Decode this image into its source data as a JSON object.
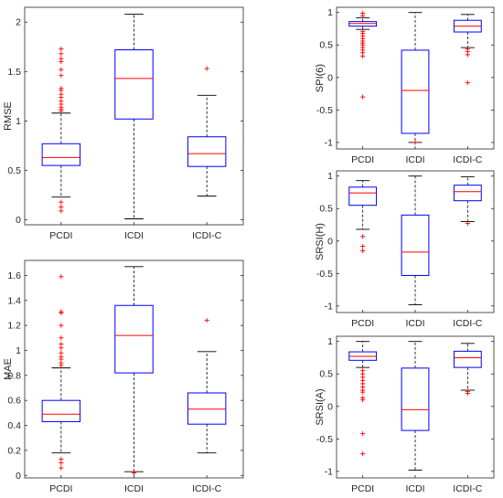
{
  "chart_data": [
    {
      "type": "box",
      "ylabel": "RMSE",
      "ylim": [
        -0.05,
        2.15
      ],
      "yticks": [
        0,
        0.5,
        1,
        1.5,
        2
      ],
      "ytick_labels": [
        "0",
        "0.5",
        "1",
        "1.5",
        "2"
      ],
      "categories": [
        "PCDI",
        "ICDI",
        "ICDI-C"
      ],
      "boxes": [
        {
          "whisker_low": 0.23,
          "q1": 0.55,
          "median": 0.63,
          "q3": 0.77,
          "whisker_high": 1.08,
          "outliers": [
            0.09,
            0.13,
            0.18,
            1.1,
            1.12,
            1.14,
            1.17,
            1.2,
            1.24,
            1.27,
            1.31,
            1.33,
            1.46,
            1.52,
            1.6,
            1.63,
            1.68,
            1.73
          ]
        },
        {
          "whisker_low": 0.01,
          "q1": 1.02,
          "median": 1.43,
          "q3": 1.72,
          "whisker_high": 2.08,
          "outliers": []
        },
        {
          "whisker_low": 0.24,
          "q1": 0.54,
          "median": 0.67,
          "q3": 0.84,
          "whisker_high": 1.26,
          "outliers": [
            1.53
          ]
        }
      ]
    },
    {
      "type": "box",
      "ylabel": "MAE",
      "ylim": [
        -0.02,
        1.72
      ],
      "yticks": [
        0,
        0.2,
        0.4,
        0.6,
        0.8,
        1,
        1.2,
        1.4,
        1.6
      ],
      "ytick_labels": [
        "0",
        "0.2",
        "0.4",
        "0.6",
        "0.8",
        "1",
        "1.2",
        "1.4",
        "1.6"
      ],
      "categories": [
        "PCDI",
        "ICDI",
        "ICDI-C"
      ],
      "boxes": [
        {
          "whisker_low": 0.18,
          "q1": 0.43,
          "median": 0.49,
          "q3": 0.6,
          "whisker_high": 0.86,
          "outliers": [
            0.06,
            0.1,
            0.13,
            0.88,
            0.9,
            0.93,
            0.95,
            0.98,
            1.02,
            1.05,
            1.1,
            1.2,
            1.3,
            1.31,
            1.59
          ]
        },
        {
          "whisker_low": 0.03,
          "q1": 0.82,
          "median": 1.12,
          "q3": 1.36,
          "whisker_high": 1.67,
          "outliers": [
            0.02
          ]
        },
        {
          "whisker_low": 0.18,
          "q1": 0.41,
          "median": 0.53,
          "q3": 0.66,
          "whisker_high": 0.99,
          "outliers": [
            1.24
          ]
        }
      ]
    },
    {
      "type": "box",
      "ylabel": "SPI(6)",
      "ylim": [
        -1.1,
        1.08
      ],
      "yticks": [
        -1,
        -0.5,
        0,
        0.5,
        1
      ],
      "ytick_labels": [
        "-1",
        "-0.5",
        "0",
        "0.5",
        "1"
      ],
      "categories": [
        "PCDI",
        "ICDI",
        "ICDI-C"
      ],
      "boxes": [
        {
          "whisker_low": 0.74,
          "q1": 0.79,
          "median": 0.83,
          "q3": 0.86,
          "whisker_high": 0.92,
          "outliers": [
            -0.3,
            0.33,
            0.38,
            0.42,
            0.46,
            0.5,
            0.53,
            0.56,
            0.6,
            0.64,
            0.68,
            0.71,
            0.95,
            0.99
          ]
        },
        {
          "whisker_low": -1.0,
          "q1": -0.86,
          "median": -0.2,
          "q3": 0.42,
          "whisker_high": 1.0,
          "outliers": [
            -1.0
          ]
        },
        {
          "whisker_low": 0.46,
          "q1": 0.7,
          "median": 0.79,
          "q3": 0.88,
          "whisker_high": 0.97,
          "outliers": [
            -0.08,
            0.35,
            0.4,
            0.44
          ]
        }
      ]
    },
    {
      "type": "box",
      "ylabel": "SRSI(H)",
      "ylim": [
        -1.1,
        1.08
      ],
      "yticks": [
        -1,
        -0.5,
        0,
        0.5,
        1
      ],
      "ytick_labels": [
        "-1",
        "-0.5",
        "0",
        "0.5",
        "1"
      ],
      "categories": [
        "PCDI",
        "ICDI",
        "ICDI-C"
      ],
      "boxes": [
        {
          "whisker_low": 0.18,
          "q1": 0.55,
          "median": 0.74,
          "q3": 0.83,
          "whisker_high": 0.93,
          "outliers": [
            -0.15,
            -0.08,
            0.07
          ]
        },
        {
          "whisker_low": -0.98,
          "q1": -0.53,
          "median": -0.17,
          "q3": 0.4,
          "whisker_high": 1.0,
          "outliers": []
        },
        {
          "whisker_low": 0.3,
          "q1": 0.62,
          "median": 0.76,
          "q3": 0.86,
          "whisker_high": 0.99,
          "outliers": [
            0.27
          ]
        }
      ]
    },
    {
      "type": "box",
      "ylabel": "SRSI(A)",
      "ylim": [
        -1.1,
        1.08
      ],
      "yticks": [
        -1,
        -0.5,
        0,
        0.5,
        1
      ],
      "ytick_labels": [
        "-1",
        "-0.5",
        "0",
        "0.5",
        "1"
      ],
      "categories": [
        "PCDI",
        "ICDI",
        "ICDI-C"
      ],
      "boxes": [
        {
          "whisker_low": 0.6,
          "q1": 0.71,
          "median": 0.77,
          "q3": 0.84,
          "whisker_high": 1.0,
          "outliers": [
            -0.73,
            -0.42,
            0.1,
            0.13,
            0.22,
            0.25,
            0.3,
            0.35,
            0.4,
            0.45,
            0.5,
            0.55
          ]
        },
        {
          "whisker_low": -0.98,
          "q1": -0.37,
          "median": -0.05,
          "q3": 0.59,
          "whisker_high": 1.0,
          "outliers": []
        },
        {
          "whisker_low": 0.25,
          "q1": 0.6,
          "median": 0.75,
          "q3": 0.85,
          "whisker_high": 0.97,
          "outliers": [
            0.2,
            0.23
          ]
        }
      ]
    }
  ],
  "colors": {
    "box": "#0000ff",
    "median": "#ff0000",
    "outlier": "#ff0000",
    "whisker": "#000000",
    "axis": "#262626"
  }
}
